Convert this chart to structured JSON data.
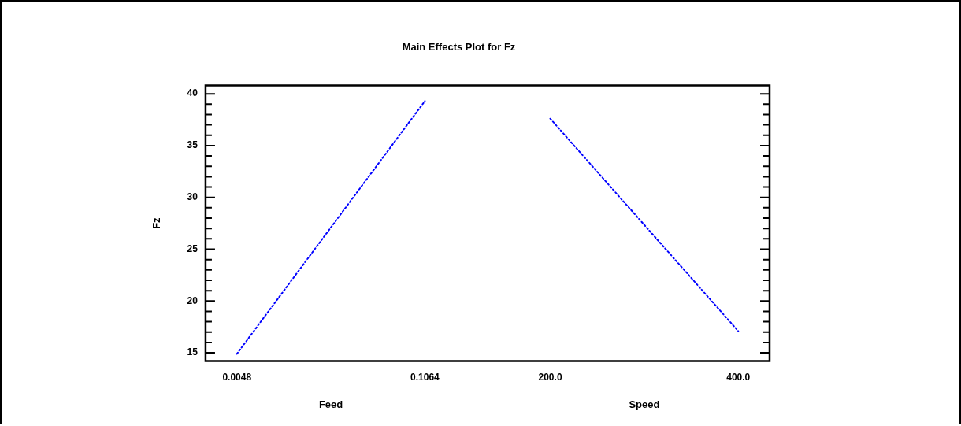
{
  "chart_data": {
    "type": "line",
    "title": "Main Effects Plot for Fz",
    "ylabel": "Fz",
    "categories": [
      "0.0048",
      null,
      null,
      "0.1064",
      null,
      "200.0",
      null,
      null,
      "400.0"
    ],
    "series": [
      {
        "color": "#0000ff",
        "values": [
          14.9,
          null,
          null,
          39.3,
          null,
          null,
          null,
          null,
          null
        ]
      },
      {
        "color": "#0000ff",
        "values": [
          null,
          null,
          null,
          null,
          null,
          37.6,
          null,
          null,
          17.1
        ]
      }
    ],
    "annotations": [
      "Feed",
      "Speed"
    ],
    "ylim": [
      14.2,
      40.8
    ],
    "yticks": [
      15,
      {
        "value": 16,
        "label": null
      },
      {
        "value": 17,
        "label": null
      },
      {
        "value": 18,
        "label": null
      },
      {
        "value": 19,
        "label": null
      },
      20,
      {
        "value": 21,
        "label": null
      },
      {
        "value": 22,
        "label": null
      },
      {
        "value": 23,
        "label": null
      },
      {
        "value": 24,
        "label": null
      },
      25,
      {
        "value": 26,
        "label": null
      },
      {
        "value": 27,
        "label": null
      },
      {
        "value": 28,
        "label": null
      },
      {
        "value": 29,
        "label": null
      },
      30,
      {
        "value": 31,
        "label": null
      },
      {
        "value": 32,
        "label": null
      },
      {
        "value": 33,
        "label": null
      },
      {
        "value": 34,
        "label": null
      },
      35,
      {
        "value": 36,
        "label": null
      },
      {
        "value": 37,
        "label": null
      },
      {
        "value": 38,
        "label": null
      },
      {
        "value": 39,
        "label": null
      },
      40
    ],
    "grid": false,
    "legend": false,
    "marker": "none",
    "line_style": "dotted"
  }
}
